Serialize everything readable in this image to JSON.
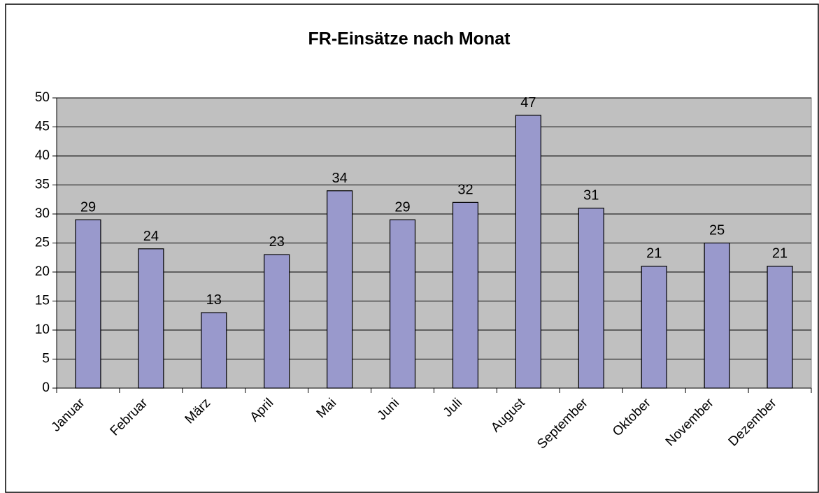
{
  "chart_data": {
    "type": "bar",
    "title": "FR-Einsätze nach Monat",
    "categories": [
      "Januar",
      "Februar",
      "März",
      "April",
      "Mai",
      "Juni",
      "Juli",
      "August",
      "September",
      "Oktober",
      "November",
      "Dezember"
    ],
    "values": [
      29,
      24,
      13,
      23,
      34,
      29,
      32,
      47,
      31,
      21,
      25,
      21
    ],
    "color": "#9999cc",
    "ylim": [
      0,
      50
    ],
    "yticks": [
      0,
      5,
      10,
      15,
      20,
      25,
      30,
      35,
      40,
      45,
      50
    ],
    "grid": true
  }
}
